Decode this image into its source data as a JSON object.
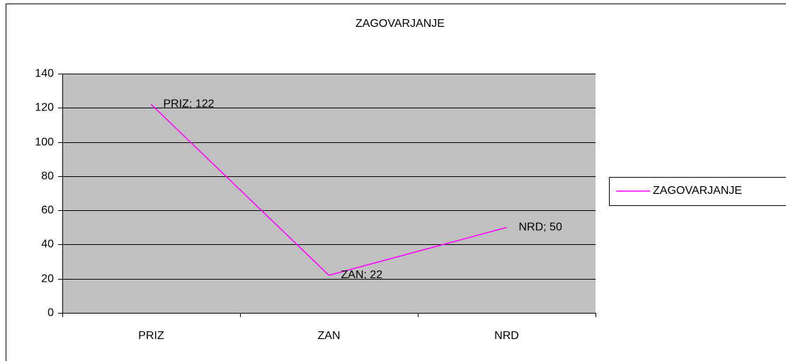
{
  "chart_data": {
    "type": "line",
    "title": "ZAGOVARJANJE",
    "categories": [
      "PRIZ",
      "ZAN",
      "NRD"
    ],
    "series": [
      {
        "name": "ZAGOVARJANJE",
        "color": "#ff00ff",
        "values": [
          122,
          22,
          50
        ],
        "value_labels": [
          "PRIZ; 122",
          "ZAN; 22",
          "NRD; 50"
        ]
      }
    ],
    "ylim": [
      0,
      140
    ],
    "yticks": [
      0,
      20,
      40,
      60,
      80,
      100,
      120,
      140
    ],
    "grid": true,
    "legend": "right",
    "plot_background": "#c0c0c0"
  }
}
